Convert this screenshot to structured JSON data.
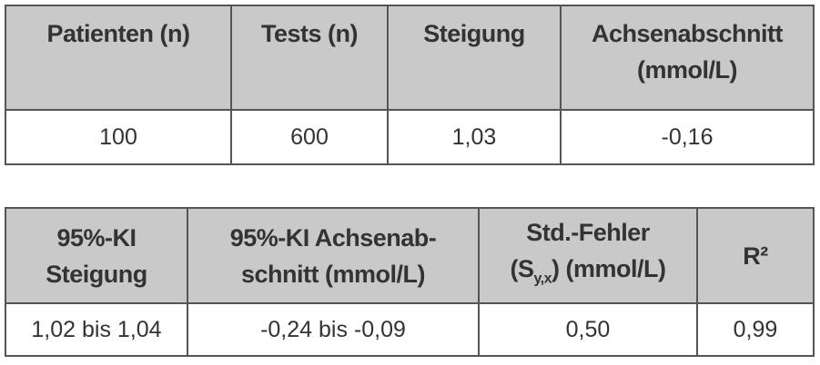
{
  "tables": [
    {
      "header": [
        [
          "Patienten (n)"
        ],
        [
          "Tests (n)"
        ],
        [
          "Steigung"
        ],
        [
          "Achsenabschnitt",
          "(mmol/L)"
        ]
      ],
      "rows": [
        [
          "100",
          "600",
          "1,03",
          "-0,16"
        ]
      ]
    },
    {
      "header": [
        [
          "95%-KI",
          "Steigung"
        ],
        [
          "95%-KI Achsenab-",
          "schnitt (mmol/L)"
        ],
        [
          "Std.-Fehler",
          {
            "before": "(S",
            "sub": "y,x",
            "after": ") (mmol/L)"
          }
        ],
        [
          "R²"
        ]
      ],
      "rows": [
        [
          "1,02 bis 1,04",
          "-0,24 bis -0,09",
          "0,50",
          "0,99"
        ]
      ]
    }
  ]
}
